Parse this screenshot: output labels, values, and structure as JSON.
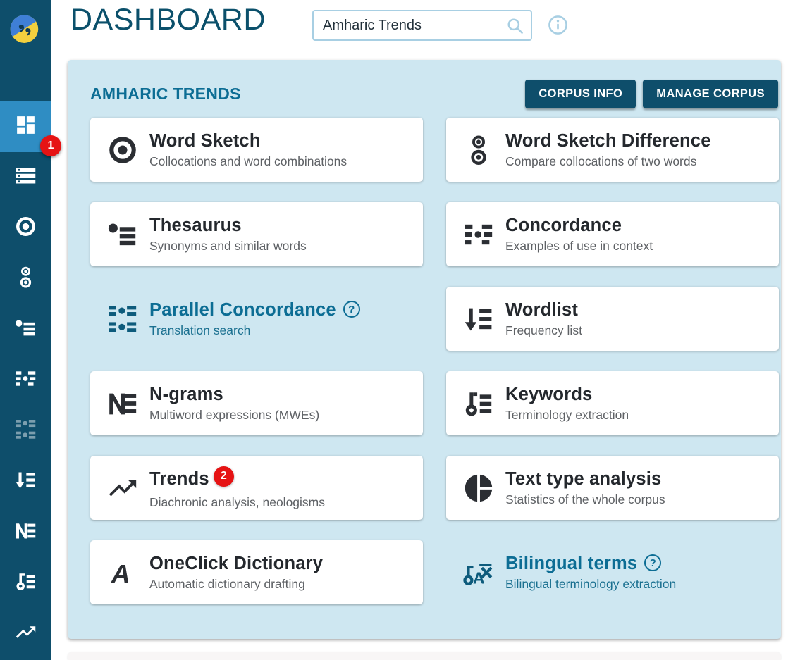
{
  "app": {
    "logo_icon": "sketch-engine-logo"
  },
  "header": {
    "title": "DASHBOARD",
    "search": {
      "value": "Amharic Trends",
      "icon": "search-icon"
    },
    "info_icon": "info-icon"
  },
  "panel": {
    "title": "AMHARIC TRENDS",
    "help_symbol": "?",
    "actions": [
      {
        "label": "CORPUS INFO"
      },
      {
        "label": "MANAGE CORPUS"
      }
    ],
    "cards": [
      {
        "title": "Word Sketch",
        "subtitle": "Collocations and word combinations",
        "icon": "word-sketch-icon",
        "style": "card"
      },
      {
        "title": "Word Sketch Difference",
        "subtitle": "Compare collocations of two words",
        "icon": "word-sketch-difference-icon",
        "style": "card"
      },
      {
        "title": "Thesaurus",
        "subtitle": "Synonyms and similar words",
        "icon": "thesaurus-icon",
        "style": "card"
      },
      {
        "title": "Concordance",
        "subtitle": "Examples of use in context",
        "icon": "concordance-icon",
        "style": "card"
      },
      {
        "title": "Parallel Concordance",
        "subtitle": "Translation search",
        "icon": "parallel-concordance-icon",
        "style": "plain",
        "help": true
      },
      {
        "title": "Wordlist",
        "subtitle": "Frequency list",
        "icon": "wordlist-icon",
        "style": "card"
      },
      {
        "title": "N-grams",
        "subtitle": "Multiword expressions (MWEs)",
        "icon": "ngrams-icon",
        "style": "card"
      },
      {
        "title": "Keywords",
        "subtitle": "Terminology extraction",
        "icon": "keywords-icon",
        "style": "card"
      },
      {
        "title": "Trends",
        "subtitle": "Diachronic analysis, neologisms",
        "icon": "trends-icon",
        "style": "card",
        "badge": "2"
      },
      {
        "title": "Text type analysis",
        "subtitle": "Statistics of the whole corpus",
        "icon": "text-type-analysis-icon",
        "style": "card"
      },
      {
        "title": "OneClick Dictionary",
        "subtitle": "Automatic dictionary drafting",
        "icon": "oneclick-dictionary-icon",
        "style": "card"
      },
      {
        "title": "Bilingual terms",
        "subtitle": "Bilingual terminology extraction",
        "icon": "bilingual-terms-icon",
        "style": "plain",
        "help": true
      }
    ]
  },
  "sidebar": {
    "items": [
      {
        "name": "dashboard",
        "icon": "dashboard-icon",
        "active": true,
        "badge": "1"
      },
      {
        "name": "corpora",
        "icon": "corpora-list-icon"
      },
      {
        "name": "word-sketch",
        "icon": "word-sketch-icon"
      },
      {
        "name": "word-sketch-difference",
        "icon": "word-sketch-difference-icon"
      },
      {
        "name": "thesaurus",
        "icon": "thesaurus-icon"
      },
      {
        "name": "concordance",
        "icon": "concordance-icon"
      },
      {
        "name": "parallel-concordance",
        "icon": "parallel-concordance-icon",
        "dimmed": true
      },
      {
        "name": "wordlist",
        "icon": "wordlist-icon"
      },
      {
        "name": "ngrams",
        "icon": "ngrams-icon"
      },
      {
        "name": "keywords",
        "icon": "keywords-icon"
      },
      {
        "name": "trends",
        "icon": "trends-icon"
      }
    ]
  },
  "colors": {
    "sidebar": "#0e4e6b",
    "sidebar_active": "#2f8dc3",
    "panel_background": "#cee7f1",
    "accent_teal": "#0c6d94",
    "title_color": "#0b506b",
    "badge_red": "#e61314",
    "button_background": "#0e4e6b",
    "light_blue_icon": "#a8cfe3"
  }
}
